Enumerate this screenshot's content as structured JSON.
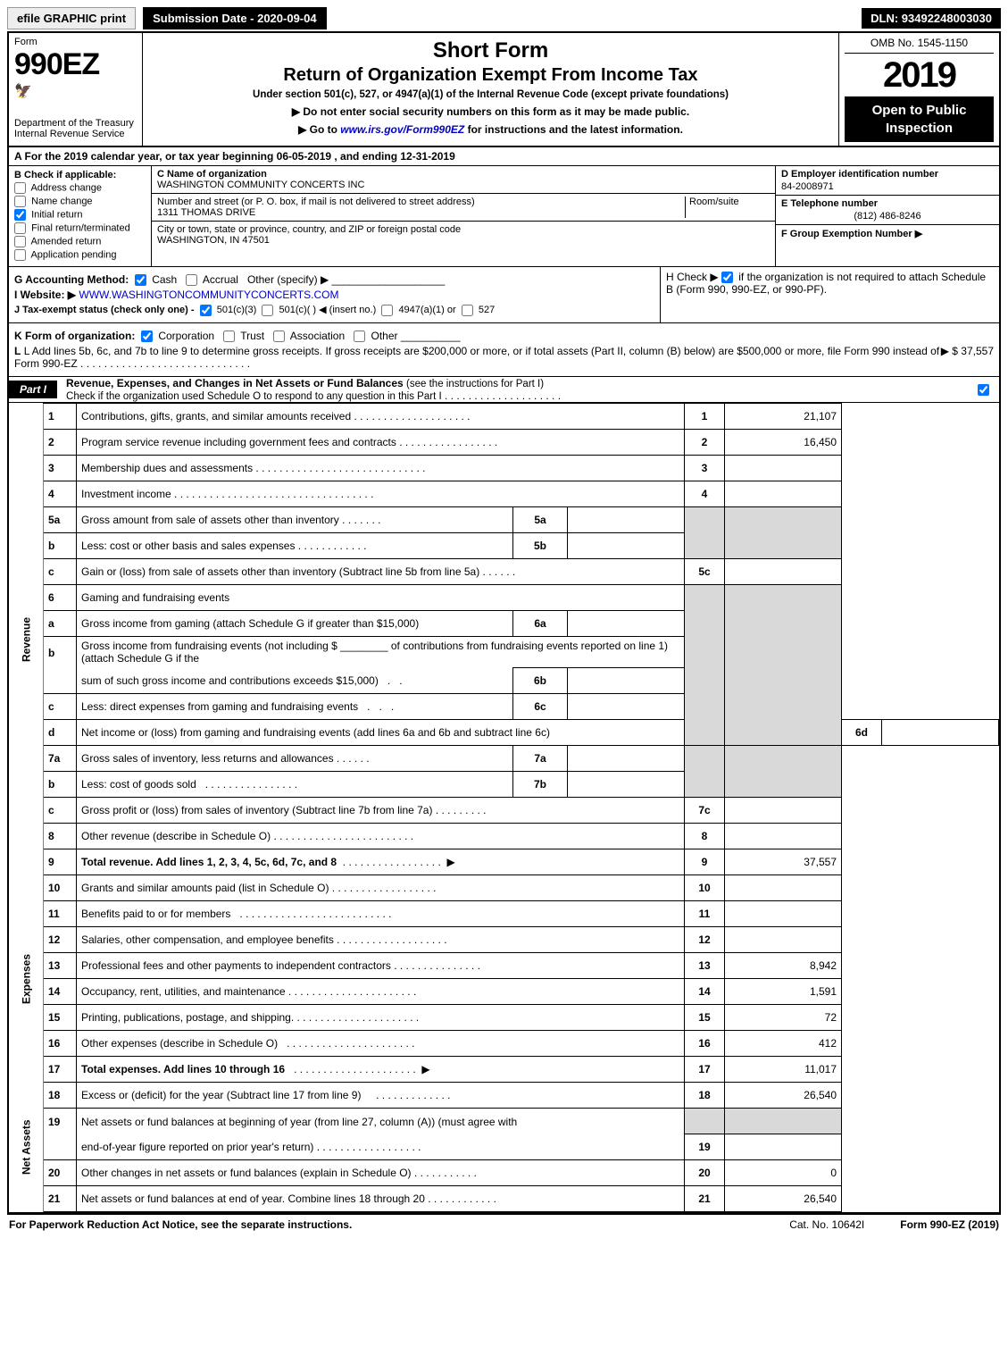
{
  "topbar": {
    "efile": "efile GRAPHIC print",
    "submission": "Submission Date - 2020-09-04",
    "dln": "DLN: 93492248003030"
  },
  "header": {
    "form_word": "Form",
    "form_number": "990EZ",
    "dept": "Department of the Treasury",
    "irs": "Internal Revenue Service",
    "short_form": "Short Form",
    "return_title": "Return of Organization Exempt From Income Tax",
    "under_section": "Under section 501(c), 527, or 4947(a)(1) of the Internal Revenue Code (except private foundations)",
    "no_ssn": "▶ Do not enter social security numbers on this form as it may be made public.",
    "goto": "▶ Go to www.irs.gov/Form990EZ for instructions and the latest information.",
    "omb": "OMB No. 1545-1150",
    "year": "2019",
    "open": "Open to Public Inspection"
  },
  "rowA": "A For the 2019 calendar year, or tax year beginning 06-05-2019 , and ending 12-31-2019",
  "blockB": {
    "title": "B Check if applicable:",
    "opts": [
      "Address change",
      "Name change",
      "Initial return",
      "Final return/terminated",
      "Amended return",
      "Application pending"
    ],
    "checked_index": 2
  },
  "blockC": {
    "name_label": "C Name of organization",
    "name": "WASHINGTON COMMUNITY CONCERTS INC",
    "street_label": "Number and street (or P. O. box, if mail is not delivered to street address)",
    "room_label": "Room/suite",
    "street": "1311 THOMAS DRIVE",
    "city_label": "City or town, state or province, country, and ZIP or foreign postal code",
    "city": "WASHINGTON, IN  47501"
  },
  "blockD": {
    "label": "D Employer identification number",
    "value": "84-2008971"
  },
  "blockE": {
    "label": "E Telephone number",
    "value": "(812) 486-8246"
  },
  "blockF": {
    "label": "F Group Exemption Number  ▶"
  },
  "rowG": {
    "acct_label": "G Accounting Method:",
    "cash": "Cash",
    "accrual": "Accrual",
    "other": "Other (specify) ▶",
    "website_label": "I Website: ▶",
    "website": "WWW.WASHINGTONCOMMUNITYCONCERTS.COM",
    "j_label": "J Tax-exempt status (check only one) -",
    "j_501c3": "501(c)(3)",
    "j_501c": "501(c)(  ) ◀ (insert no.)",
    "j_4947": "4947(a)(1) or",
    "j_527": "527"
  },
  "rowH": {
    "text1": "H  Check ▶",
    "text2": "if the organization is not required to attach Schedule B (Form 990, 990-EZ, or 990-PF)."
  },
  "rowK": {
    "k": "K Form of organization:",
    "opts": [
      "Corporation",
      "Trust",
      "Association",
      "Other"
    ],
    "l": "L Add lines 5b, 6c, and 7b to line 9 to determine gross receipts. If gross receipts are $200,000 or more, or if total assets (Part II, column (B) below) are $500,000 or more, file Form 990 instead of Form 990-EZ",
    "l_amount": "▶ $ 37,557"
  },
  "part1": {
    "tag": "Part I",
    "title": "Revenue, Expenses, and Changes in Net Assets or Fund Balances",
    "note": "(see the instructions for Part I)",
    "check_note": "Check if the organization used Schedule O to respond to any question in this Part I"
  },
  "side_labels": {
    "revenue": "Revenue",
    "expenses": "Expenses",
    "netassets": "Net Assets"
  },
  "lines": {
    "l1": {
      "desc": "Contributions, gifts, grants, and similar amounts received",
      "num": "1",
      "val": "21,107"
    },
    "l2": {
      "desc": "Program service revenue including government fees and contracts",
      "num": "2",
      "val": "16,450"
    },
    "l3": {
      "desc": "Membership dues and assessments",
      "num": "3",
      "val": ""
    },
    "l4": {
      "desc": "Investment income",
      "num": "4",
      "val": ""
    },
    "l5a": {
      "desc": "Gross amount from sale of assets other than inventory",
      "sub": "5a"
    },
    "l5b": {
      "desc": "Less: cost or other basis and sales expenses",
      "sub": "5b"
    },
    "l5c": {
      "desc": "Gain or (loss) from sale of assets other than inventory (Subtract line 5b from line 5a)",
      "num": "5c",
      "val": ""
    },
    "l6": {
      "desc": "Gaming and fundraising events"
    },
    "l6a": {
      "desc": "Gross income from gaming (attach Schedule G if greater than $15,000)",
      "sub": "6a"
    },
    "l6b_1": "Gross income from fundraising events (not including $",
    "l6b_2": "of contributions from fundraising events reported on line 1) (attach Schedule G if the",
    "l6b_3": "sum of such gross income and contributions exceeds $15,000)",
    "l6b_sub": "6b",
    "l6c": {
      "desc": "Less: direct expenses from gaming and fundraising events",
      "sub": "6c"
    },
    "l6d": {
      "desc": "Net income or (loss) from gaming and fundraising events (add lines 6a and 6b and subtract line 6c)",
      "num": "6d",
      "val": ""
    },
    "l7a": {
      "desc": "Gross sales of inventory, less returns and allowances",
      "sub": "7a"
    },
    "l7b": {
      "desc": "Less: cost of goods sold",
      "sub": "7b"
    },
    "l7c": {
      "desc": "Gross profit or (loss) from sales of inventory (Subtract line 7b from line 7a)",
      "num": "7c",
      "val": ""
    },
    "l8": {
      "desc": "Other revenue (describe in Schedule O)",
      "num": "8",
      "val": ""
    },
    "l9": {
      "desc": "Total revenue. Add lines 1, 2, 3, 4, 5c, 6d, 7c, and 8",
      "num": "9",
      "val": "37,557"
    },
    "l10": {
      "desc": "Grants and similar amounts paid (list in Schedule O)",
      "num": "10",
      "val": ""
    },
    "l11": {
      "desc": "Benefits paid to or for members",
      "num": "11",
      "val": ""
    },
    "l12": {
      "desc": "Salaries, other compensation, and employee benefits",
      "num": "12",
      "val": ""
    },
    "l13": {
      "desc": "Professional fees and other payments to independent contractors",
      "num": "13",
      "val": "8,942"
    },
    "l14": {
      "desc": "Occupancy, rent, utilities, and maintenance",
      "num": "14",
      "val": "1,591"
    },
    "l15": {
      "desc": "Printing, publications, postage, and shipping.",
      "num": "15",
      "val": "72"
    },
    "l16": {
      "desc": "Other expenses (describe in Schedule O)",
      "num": "16",
      "val": "412"
    },
    "l17": {
      "desc": "Total expenses. Add lines 10 through 16",
      "num": "17",
      "val": "11,017"
    },
    "l18": {
      "desc": "Excess or (deficit) for the year (Subtract line 17 from line 9)",
      "num": "18",
      "val": "26,540"
    },
    "l19_1": "Net assets or fund balances at beginning of year (from line 27, column (A)) (must agree with",
    "l19_2": "end-of-year figure reported on prior year's return)",
    "l19": {
      "num": "19",
      "val": ""
    },
    "l20": {
      "desc": "Other changes in net assets or fund balances (explain in Schedule O)",
      "num": "20",
      "val": "0"
    },
    "l21": {
      "desc": "Net assets or fund balances at end of year. Combine lines 18 through 20",
      "num": "21",
      "val": "26,540"
    }
  },
  "footer": {
    "paperwork": "For Paperwork Reduction Act Notice, see the separate instructions.",
    "cat": "Cat. No. 10642I",
    "formver": "Form 990-EZ (2019)"
  },
  "colors": {
    "black": "#000000",
    "shade": "#d9d9d9",
    "link": "#0000cc"
  }
}
